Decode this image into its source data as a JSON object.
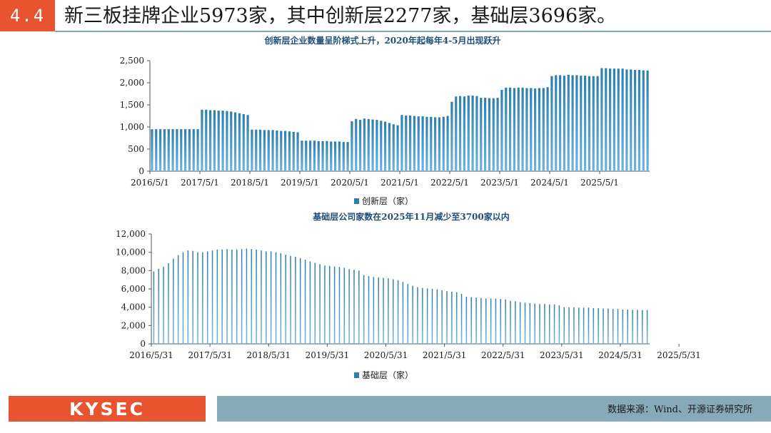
{
  "header": {
    "section": "4.4",
    "headline": "新三板挂牌企业5973家，其中创新层2277家，基础层3696家。"
  },
  "footer": {
    "logo": "KYSEC",
    "source": "数据来源：Wind、开源证券研究所"
  },
  "colors": {
    "accent": "#E8542F",
    "bar_top": "#2E7FAE",
    "bar_bottom": "#6EB3DD",
    "band": "#87AAB9"
  },
  "chart_data": [
    {
      "type": "bar",
      "title": "创新层企业数量呈阶梯式上升，2020年起每年4-5月出现跃升",
      "legend": "创新层（家）",
      "legend_position": "bottom",
      "ylim": [
        0,
        2500
      ],
      "yticks": [
        "0",
        "500",
        "1,000",
        "1,500",
        "2,000",
        "2,500"
      ],
      "yticks_values": [
        0,
        500,
        1000,
        1500,
        2000,
        2500
      ],
      "xticks": [
        "2016/5/1",
        "2017/5/1",
        "2018/5/1",
        "2019/5/1",
        "2020/5/1",
        "2021/5/1",
        "2022/5/1",
        "2023/5/1",
        "2024/5/1",
        "2025/5/1"
      ],
      "values": [
        950,
        950,
        950,
        950,
        950,
        950,
        950,
        950,
        950,
        950,
        950,
        950,
        1390,
        1390,
        1380,
        1380,
        1370,
        1370,
        1360,
        1350,
        1330,
        1310,
        1290,
        1270,
        940,
        940,
        940,
        930,
        930,
        930,
        920,
        910,
        910,
        900,
        890,
        880,
        690,
        690,
        690,
        690,
        680,
        680,
        680,
        670,
        670,
        670,
        660,
        660,
        1130,
        1180,
        1160,
        1190,
        1180,
        1170,
        1160,
        1140,
        1120,
        1090,
        1060,
        1040,
        1270,
        1260,
        1260,
        1250,
        1240,
        1240,
        1230,
        1230,
        1220,
        1220,
        1230,
        1250,
        1570,
        1690,
        1700,
        1690,
        1710,
        1710,
        1700,
        1660,
        1660,
        1650,
        1650,
        1660,
        1840,
        1890,
        1890,
        1880,
        1890,
        1890,
        1880,
        1880,
        1870,
        1880,
        1880,
        1900,
        2150,
        2170,
        2170,
        2160,
        2180,
        2170,
        2170,
        2160,
        2160,
        2150,
        2150,
        2150,
        2330,
        2330,
        2320,
        2320,
        2320,
        2320,
        2300,
        2300,
        2290,
        2290,
        2280,
        2277
      ]
    },
    {
      "type": "bar",
      "title": "基础层公司家数在2025年11月减少至3700家以内",
      "legend": "基础层（家）",
      "legend_position": "bottom",
      "ylim": [
        0,
        12000
      ],
      "yticks": [
        "0",
        "2,000",
        "4,000",
        "6,000",
        "8,000",
        "10,000",
        "12,000"
      ],
      "yticks_values": [
        0,
        2000,
        4000,
        6000,
        8000,
        10000,
        12000
      ],
      "xticks": [
        "2016/5/31",
        "2017/5/31",
        "2018/5/31",
        "2019/5/31",
        "2020/5/31",
        "2021/5/31",
        "2022/5/31",
        "2023/5/31",
        "2024/5/31",
        "2025/5/31"
      ],
      "values": [
        7900,
        8200,
        8400,
        8800,
        9300,
        9700,
        10000,
        10200,
        10150,
        10000,
        10000,
        10100,
        10200,
        10300,
        10300,
        10350,
        10300,
        10300,
        10350,
        10400,
        10350,
        10300,
        10200,
        10100,
        10100,
        10000,
        9900,
        9750,
        9600,
        9500,
        9350,
        9200,
        9000,
        8850,
        8700,
        8550,
        8500,
        8450,
        8400,
        8300,
        8150,
        8100,
        8000,
        7500,
        7400,
        7300,
        7250,
        7200,
        7150,
        7050,
        6950,
        6750,
        6550,
        6350,
        6200,
        6100,
        6050,
        6000,
        5950,
        5850,
        5750,
        5700,
        5650,
        5450,
        5150,
        5100,
        5050,
        5000,
        4950,
        4950,
        4950,
        4900,
        4850,
        4700,
        4650,
        4550,
        4500,
        4450,
        4400,
        4350,
        4350,
        4300,
        4300,
        4200,
        4000,
        4000,
        4000,
        3950,
        3950,
        3950,
        3900,
        3900,
        3850,
        3850,
        3800,
        3800,
        3750,
        3750,
        3720,
        3710,
        3700,
        3696
      ]
    }
  ]
}
